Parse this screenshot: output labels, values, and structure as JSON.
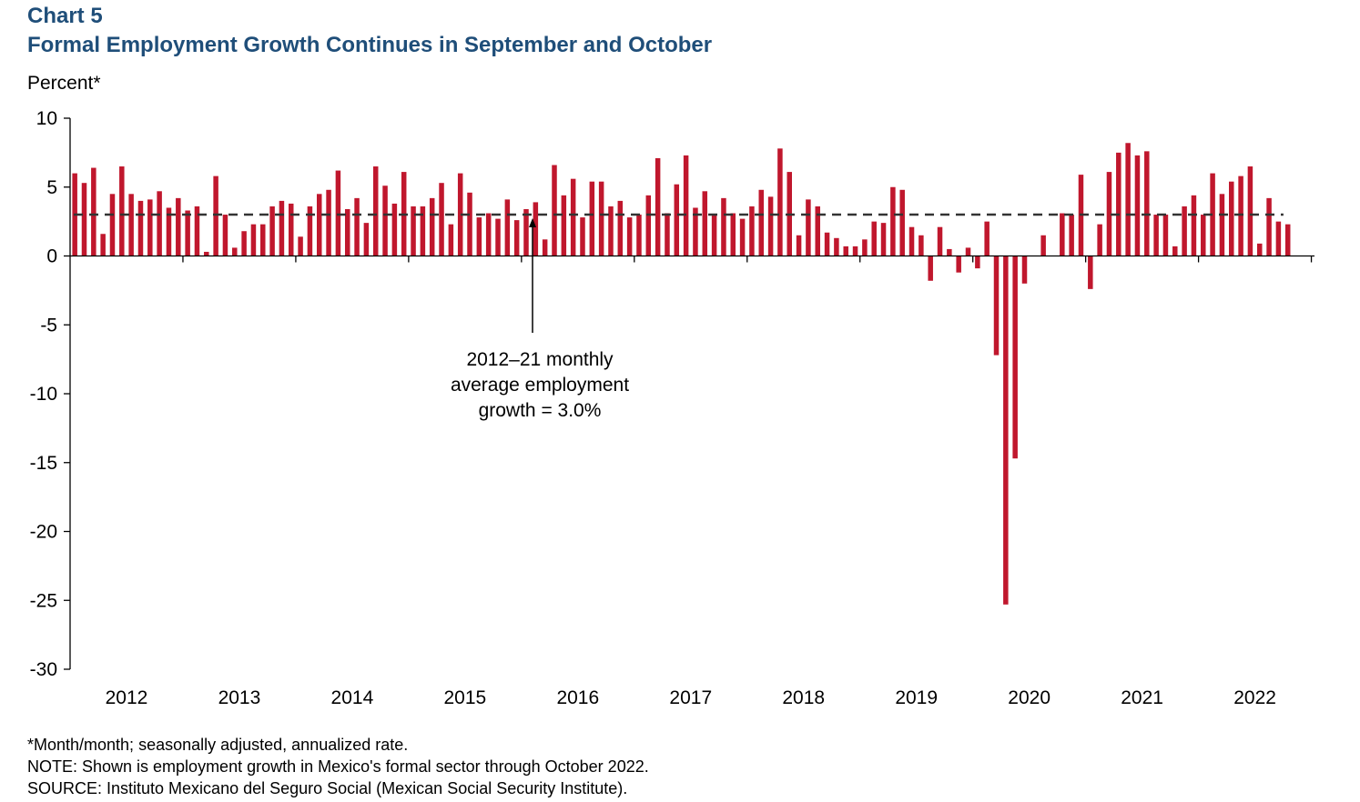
{
  "header": {
    "chart_label": "Chart 5",
    "title": "Formal Employment Growth Continues in September and October",
    "unit_label": "Percent*"
  },
  "annotation": {
    "lines": [
      "2012–21 monthly",
      "average employment",
      "growth = 3.0%"
    ]
  },
  "notes": {
    "footnote": "*Month/month; seasonally adjusted, annualized rate.",
    "note": "NOTE: Shown is employment growth in Mexico's formal sector through October 2022.",
    "source": "SOURCE: Instituto Mexicano del Seguro Social (Mexican Social Security Institute)."
  },
  "colors": {
    "bar": "#c0172d",
    "title": "#1f4e79",
    "average_line": "#333333"
  },
  "chart_data": {
    "type": "bar",
    "ylim": [
      -30,
      10
    ],
    "yticks": [
      10,
      5,
      0,
      -5,
      -10,
      -15,
      -20,
      -25,
      -30
    ],
    "year_labels": [
      "2012",
      "2013",
      "2014",
      "2015",
      "2016",
      "2017",
      "2018",
      "2019",
      "2020",
      "2021",
      "2022"
    ],
    "start": "2012-01",
    "end": "2022-10",
    "average_line": {
      "value": 3.0,
      "style": "dashed"
    },
    "grid": false,
    "series": [
      {
        "values": [
          6.0,
          5.3,
          6.4,
          1.6,
          4.5,
          6.5,
          4.5,
          4.0,
          4.1,
          4.7,
          3.5,
          4.2,
          3.3,
          3.6,
          0.3,
          5.8,
          3.0,
          0.6,
          1.8,
          2.3,
          2.3,
          3.6,
          4.0,
          3.8,
          1.4,
          3.6,
          4.5,
          4.8,
          6.2,
          3.4,
          4.2,
          2.4,
          6.5,
          5.1,
          3.8,
          6.1,
          3.6,
          3.6,
          4.2,
          5.3,
          2.3,
          6.0,
          4.6,
          2.8,
          3.1,
          2.7,
          4.1,
          2.6,
          3.4,
          3.9,
          1.2,
          6.6,
          4.4,
          5.6,
          2.8,
          5.4,
          5.4,
          3.6,
          4.0,
          2.8,
          3.0,
          4.4,
          7.1,
          3.1,
          5.2,
          7.3,
          3.5,
          4.7,
          3.0,
          4.2,
          3.1,
          2.7,
          3.6,
          4.8,
          4.3,
          7.8,
          6.1,
          1.5,
          4.1,
          3.6,
          1.7,
          1.3,
          0.7,
          0.7,
          1.2,
          2.5,
          2.4,
          5.0,
          4.8,
          2.1,
          1.5,
          -1.8,
          2.1,
          0.5,
          -1.2,
          0.6,
          -0.9,
          2.5,
          -7.2,
          -25.3,
          -14.7,
          -2.0,
          0.0,
          1.5,
          0.0,
          3.1,
          3.0,
          5.9,
          -2.4,
          2.3,
          6.1,
          7.5,
          8.2,
          7.3,
          7.6,
          3.0,
          3.0,
          0.7,
          3.6,
          4.4,
          3.0,
          6.0,
          4.5,
          5.4,
          5.8,
          6.5,
          0.9,
          4.2,
          2.5,
          2.3
        ]
      }
    ]
  }
}
